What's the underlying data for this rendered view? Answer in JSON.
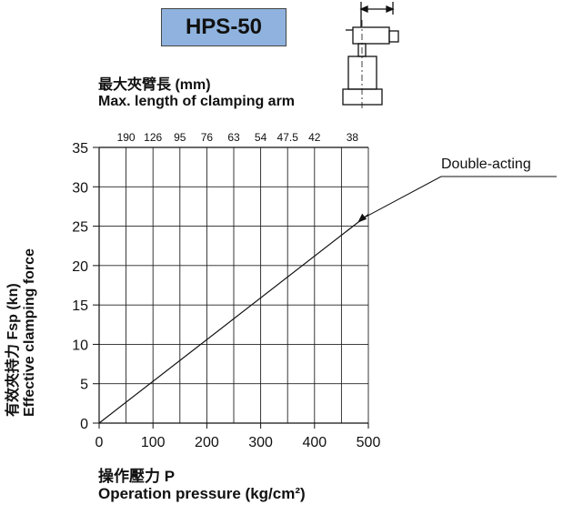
{
  "model": {
    "label": "HPS-50",
    "color": "#8fb3de"
  },
  "arm_axis": {
    "title_cn": "最大夾臂長 (mm)",
    "title_en": "Max. length of clamping arm",
    "ticks": [
      "190",
      "126",
      "95",
      "76",
      "63",
      "54",
      "47.5",
      "42",
      "38"
    ]
  },
  "x_axis": {
    "title_cn": "操作壓力 P",
    "title_en": "Operation pressure (kg/cm²)",
    "ticks": [
      "0",
      "100",
      "200",
      "300",
      "400",
      "500"
    ]
  },
  "y_axis": {
    "title_cn": "有效夾持力 Fsp (kn)",
    "title_en": "Effective clamping force",
    "ticks": [
      "0",
      "5",
      "10",
      "15",
      "20",
      "25",
      "30",
      "35"
    ]
  },
  "chart_data": {
    "type": "line",
    "xlim": [
      0,
      500
    ],
    "ylim": [
      0,
      35
    ],
    "grid": true,
    "x_gridlines": [
      0,
      50,
      100,
      150,
      200,
      250,
      300,
      350,
      400,
      450,
      500
    ],
    "series": [
      {
        "name": "Double-acting",
        "x": [
          0,
          500
        ],
        "y": [
          0,
          26.5
        ]
      }
    ]
  }
}
